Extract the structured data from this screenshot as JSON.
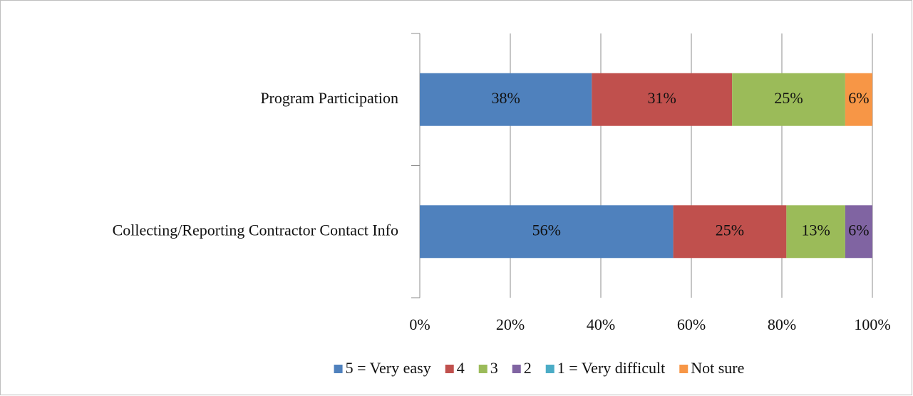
{
  "chart_data": {
    "type": "stacked-bar-horizontal",
    "categories": [
      "Program Participation",
      "Collecting/Reporting Contractor Contact Info"
    ],
    "series": [
      {
        "name": "5 = Very easy",
        "color": "#4f81bd",
        "values": [
          38,
          56
        ],
        "value_labels": [
          "38%",
          "56%"
        ]
      },
      {
        "name": "4",
        "color": "#c0504d",
        "values": [
          31,
          25
        ],
        "value_labels": [
          "31%",
          "25%"
        ]
      },
      {
        "name": "3",
        "color": "#9bbb59",
        "values": [
          25,
          13
        ],
        "value_labels": [
          "25%",
          "13%"
        ]
      },
      {
        "name": "2",
        "color": "#8064a2",
        "values": [
          null,
          6
        ],
        "value_labels": [
          null,
          "6%"
        ]
      },
      {
        "name": "1 = Very difficult",
        "color": "#4bacc6",
        "values": [
          null,
          null
        ],
        "value_labels": [
          null,
          null
        ]
      },
      {
        "name": "Not sure",
        "color": "#f79646",
        "values": [
          6,
          null
        ],
        "value_labels": [
          "6%",
          null
        ]
      }
    ],
    "xlim": [
      0,
      100
    ],
    "xticks": [
      {
        "value": 0,
        "label": "0%"
      },
      {
        "value": 20,
        "label": "20%"
      },
      {
        "value": 40,
        "label": "40%"
      },
      {
        "value": 60,
        "label": "60%"
      },
      {
        "value": 80,
        "label": "80%"
      },
      {
        "value": 100,
        "label": "100%"
      }
    ],
    "grid": true,
    "legend": "bottom"
  }
}
